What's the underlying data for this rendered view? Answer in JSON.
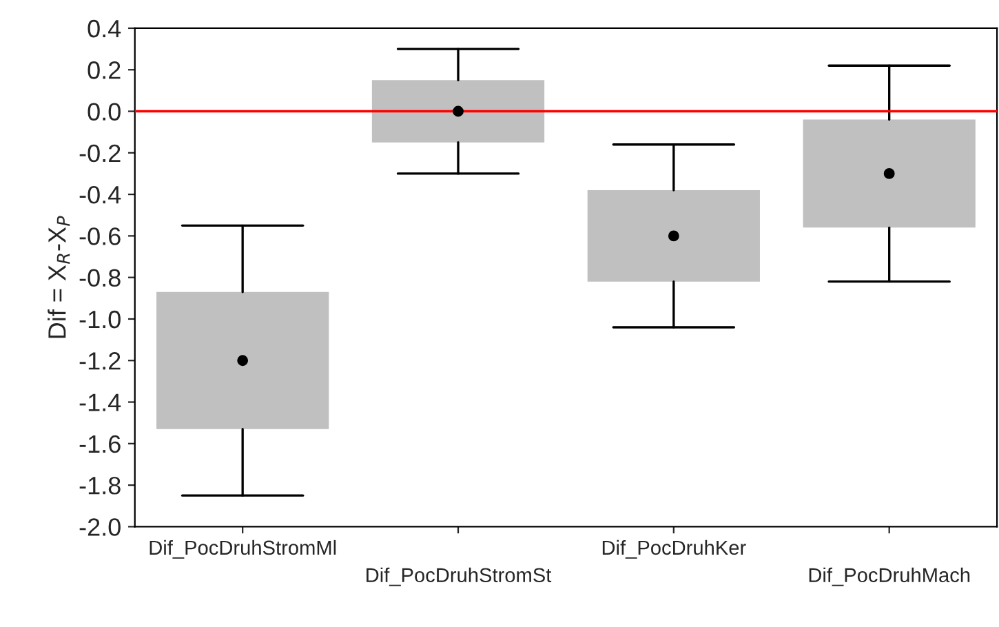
{
  "chart_data": {
    "type": "box",
    "ylabel": "Dif = X$_{R}$-X$_{P}$",
    "categories": [
      "Dif_PocDruhStromMl",
      "Dif_PocDruhStromSt",
      "Dif_PocDruhKer",
      "Dif_PocDruhMach"
    ],
    "boxes": [
      {
        "low": -1.85,
        "q1": -1.53,
        "median": -1.2,
        "q3": -0.87,
        "high": -0.55
      },
      {
        "low": -0.3,
        "q1": -0.15,
        "median": 0.0,
        "q3": 0.15,
        "high": 0.3
      },
      {
        "low": -1.04,
        "q1": -0.82,
        "median": -0.6,
        "q3": -0.38,
        "high": -0.16
      },
      {
        "low": -0.82,
        "q1": -0.56,
        "median": -0.3,
        "q3": -0.04,
        "high": 0.22
      }
    ],
    "color": "#c0c0c0",
    "ylim": [
      -2.0,
      0.4
    ],
    "yticks": [
      {
        "value": -2.0,
        "label": "-2.0"
      },
      {
        "value": -1.8,
        "label": "-1.8"
      },
      {
        "value": -1.6,
        "label": "-1.6"
      },
      {
        "value": -1.4,
        "label": "-1.4"
      },
      {
        "value": -1.2,
        "label": "-1.2"
      },
      {
        "value": -1.0,
        "label": "-1.0"
      },
      {
        "value": -0.8,
        "label": "-0.8"
      },
      {
        "value": -0.6,
        "label": "-0.6"
      },
      {
        "value": -0.4,
        "label": "-0.4"
      },
      {
        "value": -0.2,
        "label": "-0.2"
      },
      {
        "value": 0.0,
        "label": "0.0"
      },
      {
        "value": 0.2,
        "label": "0.2"
      },
      {
        "value": 0.4,
        "label": "0.4"
      }
    ],
    "ref_lines": [
      {
        "axis": "y",
        "value": 0.0,
        "color": "#ff0000",
        "line_style": "solid"
      }
    ],
    "grid": false,
    "legend": false
  }
}
